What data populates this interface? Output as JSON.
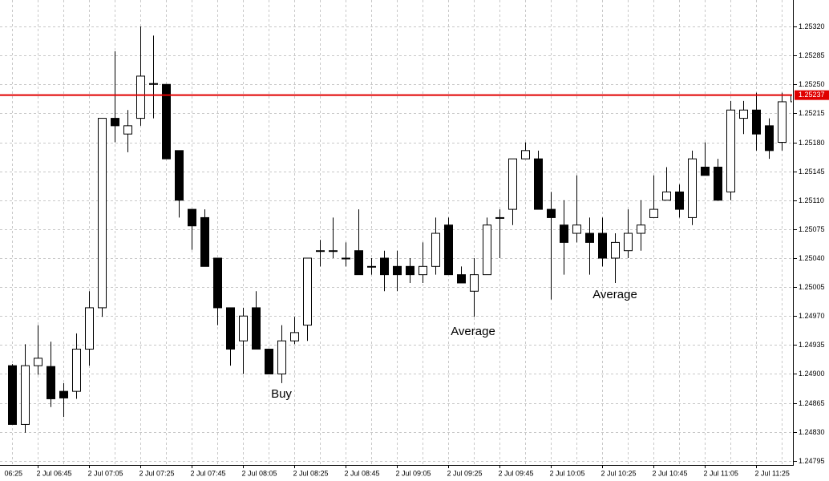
{
  "chart_data": {
    "type": "candlestick",
    "open": [
      1.2491,
      1.24839,
      1.2491,
      1.24909,
      1.24879,
      1.24879,
      1.2493,
      1.2498,
      1.25209,
      1.2519,
      1.25209,
      1.25251,
      1.2525,
      1.2517,
      1.25099,
      1.25089,
      1.2504,
      1.2498,
      1.2494,
      1.2498,
      1.2493,
      1.249,
      1.2494,
      1.24959,
      1.25049,
      1.25049,
      1.2504,
      1.25049,
      1.2503,
      1.2504,
      1.2503,
      1.2503,
      1.2502,
      1.2503,
      1.2508,
      1.2502,
      1.25,
      1.2502,
      1.25089,
      1.25099,
      1.2516,
      1.2516,
      1.25099,
      1.2508,
      1.2507,
      1.2507,
      1.2507,
      1.2504,
      1.25049,
      1.2507,
      1.25089,
      1.2511,
      1.2512,
      1.25089,
      1.2515,
      1.2515,
      1.2512,
      1.25209,
      1.25219,
      1.252,
      1.2518,
      1.25229
    ],
    "high": [
      1.24912,
      1.24936,
      1.24959,
      1.24939,
      1.24889,
      1.24949,
      1.25,
      1.25209,
      1.2529,
      1.25219,
      1.2532,
      1.25309,
      1.2525,
      1.2517,
      1.25099,
      1.25099,
      1.2504,
      1.2498,
      1.2498,
      1.25,
      1.2493,
      1.24959,
      1.24969,
      1.2504,
      1.25062,
      1.25089,
      1.25059,
      1.25099,
      1.2504,
      1.25049,
      1.25049,
      1.2504,
      1.25059,
      1.25089,
      1.25089,
      1.2503,
      1.2504,
      1.25089,
      1.25099,
      1.2516,
      1.2518,
      1.2517,
      1.2512,
      1.2511,
      1.2514,
      1.25089,
      1.25089,
      1.2507,
      1.25099,
      1.2511,
      1.2514,
      1.2515,
      1.25129,
      1.2517,
      1.2518,
      1.2516,
      1.2523,
      1.2523,
      1.2524,
      1.25209,
      1.2524,
      1.2528
    ],
    "low": [
      1.24839,
      1.24829,
      1.24899,
      1.2486,
      1.24848,
      1.2487,
      1.2491,
      1.24969,
      1.2518,
      1.25168,
      1.252,
      1.25209,
      1.2516,
      1.25089,
      1.2505,
      1.2503,
      1.24959,
      1.2491,
      1.249,
      1.2493,
      1.249,
      1.24889,
      1.24936,
      1.2494,
      1.2503,
      1.2504,
      1.2503,
      1.2502,
      1.2502,
      1.25,
      1.25,
      1.2501,
      1.2501,
      1.2502,
      1.2502,
      1.2501,
      1.24969,
      1.2502,
      1.2504,
      1.2508,
      1.2516,
      1.25099,
      1.2499,
      1.2502,
      1.25059,
      1.2502,
      1.2503,
      1.2501,
      1.2504,
      1.25049,
      1.25089,
      1.2511,
      1.25089,
      1.2508,
      1.2514,
      1.2511,
      1.2511,
      1.2519,
      1.2517,
      1.2516,
      1.2517,
      1.252
    ],
    "close": [
      1.24839,
      1.2491,
      1.24919,
      1.2487,
      1.24871,
      1.2493,
      1.2498,
      1.25209,
      1.252,
      1.252,
      1.2526,
      1.2525,
      1.2516,
      1.2511,
      1.25079,
      1.2503,
      1.2498,
      1.2493,
      1.2497,
      1.2493,
      1.249,
      1.2494,
      1.2495,
      1.2504,
      1.25049,
      1.25049,
      1.2504,
      1.2502,
      1.2503,
      1.2502,
      1.2502,
      1.2502,
      1.2503,
      1.2507,
      1.2502,
      1.2501,
      1.2502,
      1.2508,
      1.25089,
      1.2516,
      1.2517,
      1.25099,
      1.25089,
      1.25059,
      1.2508,
      1.25059,
      1.2504,
      1.25059,
      1.2507,
      1.2508,
      1.25099,
      1.2512,
      1.25099,
      1.2516,
      1.2514,
      1.2511,
      1.25219,
      1.25219,
      1.2519,
      1.2517,
      1.25229,
      1.25237
    ],
    "ylim": [
      1.2479,
      1.25352
    ],
    "yticks": [
      1.24795,
      {
        "value": 1.2483,
        "label": "1.24830"
      },
      1.24865,
      {
        "value": 1.249,
        "label": "1.24900"
      },
      1.24935,
      {
        "value": 1.2497,
        "label": "1.24970"
      },
      1.25005,
      {
        "value": 1.2504,
        "label": "1.25040"
      },
      1.25075,
      {
        "value": 1.2511,
        "label": "1.25110"
      },
      1.25145,
      {
        "value": 1.2518,
        "label": "1.25180"
      },
      1.25215,
      {
        "value": 1.2525,
        "label": "1.25250"
      },
      1.25285,
      {
        "value": 1.2532,
        "label": "1.25320"
      }
    ],
    "xtick_labels": [
      "06:25",
      "2 Jul 06:45",
      "2 Jul 07:05",
      "2 Jul 07:25",
      "2 Jul 07:45",
      "2 Jul 08:05",
      "2 Jul 08:25",
      "2 Jul 08:45",
      "2 Jul 09:05",
      "2 Jul 09:25",
      "2 Jul 09:45",
      "2 Jul 10:05",
      "2 Jul 10:25",
      "2 Jul 10:45",
      "2 Jul 11:05",
      "2 Jul 11:25"
    ],
    "current_price": 1.25237,
    "grid": true,
    "annotations": [
      "Buy",
      "Average",
      "Average"
    ]
  }
}
